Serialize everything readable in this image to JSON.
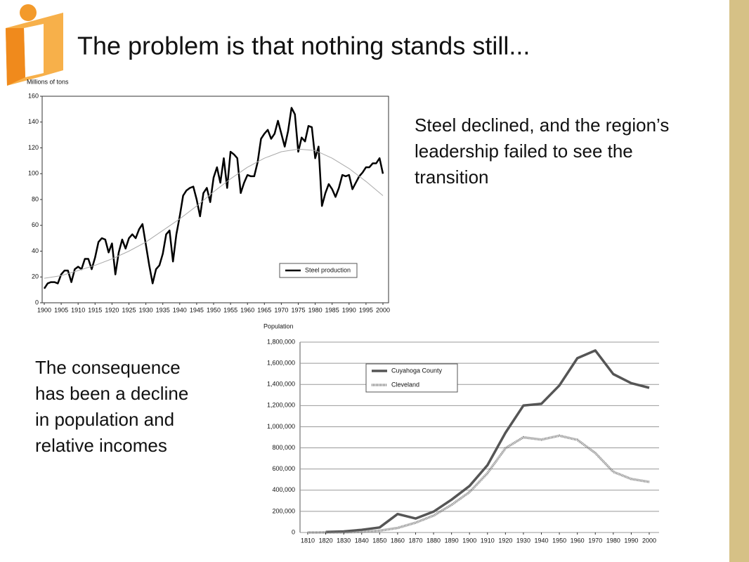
{
  "slide": {
    "title": "The problem is that nothing stands still...",
    "note_right": [
      "Steel declined, and the region’s",
      "leadership failed to see the",
      "transition"
    ],
    "note_left": [
      "The consequence",
      "has been a decline",
      "in population and",
      "relative incomes"
    ]
  },
  "chart_data": [
    {
      "type": "line",
      "y_label": "Millions of tons",
      "x": [
        1900,
        1901,
        1902,
        1903,
        1904,
        1905,
        1906,
        1907,
        1908,
        1909,
        1910,
        1911,
        1912,
        1913,
        1914,
        1915,
        1916,
        1917,
        1918,
        1919,
        1920,
        1921,
        1922,
        1923,
        1924,
        1925,
        1926,
        1927,
        1928,
        1929,
        1930,
        1931,
        1932,
        1933,
        1934,
        1935,
        1936,
        1937,
        1938,
        1939,
        1940,
        1941,
        1942,
        1943,
        1944,
        1945,
        1946,
        1947,
        1948,
        1949,
        1950,
        1951,
        1952,
        1953,
        1954,
        1955,
        1956,
        1957,
        1958,
        1959,
        1960,
        1961,
        1962,
        1963,
        1964,
        1965,
        1966,
        1967,
        1968,
        1969,
        1970,
        1971,
        1972,
        1973,
        1974,
        1975,
        1976,
        1977,
        1978,
        1979,
        1980,
        1981,
        1982,
        1983,
        1984,
        1985,
        1986,
        1987,
        1988,
        1989,
        1990,
        1991,
        1992,
        1993,
        1994,
        1995,
        1996,
        1997,
        1998,
        1999,
        2000
      ],
      "series": [
        {
          "name": "Steel production",
          "color": "#000000",
          "values": [
            11,
            15,
            16,
            16,
            15,
            22,
            25,
            25,
            16,
            26,
            28,
            26,
            34,
            34,
            26,
            35,
            47,
            50,
            49,
            39,
            46,
            22,
            39,
            49,
            42,
            50,
            53,
            50,
            57,
            61,
            45,
            29,
            15,
            26,
            29,
            38,
            53,
            56,
            32,
            53,
            67,
            83,
            87,
            89,
            90,
            80,
            67,
            85,
            89,
            78,
            97,
            105,
            93,
            112,
            89,
            117,
            115,
            112,
            85,
            93,
            99,
            98,
            98,
            109,
            127,
            131,
            134,
            127,
            131,
            141,
            131,
            121,
            133,
            151,
            146,
            117,
            128,
            125,
            137,
            136,
            112,
            121,
            75,
            85,
            92,
            88,
            82,
            89,
            99,
            98,
            99,
            88,
            93,
            98,
            101,
            105,
            105,
            108,
            108,
            112,
            100
          ]
        },
        {
          "color": "#aaaaaa",
          "x": [
            1900,
            1905,
            1910,
            1915,
            1920,
            1925,
            1930,
            1935,
            1940,
            1945,
            1950,
            1955,
            1960,
            1965,
            1970,
            1975,
            1980,
            1985,
            1990,
            1995,
            2000
          ],
          "values": [
            19,
            21,
            25,
            29,
            34,
            40,
            47,
            56,
            65,
            75,
            86,
            96,
            105,
            112,
            117,
            119,
            118,
            112,
            104,
            94,
            83
          ]
        }
      ],
      "xlim": [
        1900,
        2000
      ],
      "xticks": [
        1900,
        1905,
        1910,
        1915,
        1920,
        1925,
        1930,
        1935,
        1940,
        1945,
        1950,
        1955,
        1960,
        1965,
        1970,
        1975,
        1980,
        1985,
        1990,
        1995,
        2000
      ],
      "ylim": [
        0,
        160
      ],
      "yticks": [
        0,
        20,
        40,
        60,
        80,
        100,
        120,
        140,
        160
      ],
      "grid": false,
      "legend": "lower right"
    },
    {
      "type": "line",
      "y_label": "Population",
      "x": [
        1810,
        1820,
        1830,
        1840,
        1850,
        1860,
        1870,
        1880,
        1890,
        1900,
        1910,
        1920,
        1930,
        1940,
        1950,
        1960,
        1970,
        1980,
        1990,
        2000
      ],
      "series": [
        {
          "name": "Cuyahoga County",
          "color": "#555555",
          "style": "solid",
          "values": [
            null,
            5000,
            10000,
            25000,
            48000,
            175000,
            132000,
            197000,
            310000,
            440000,
            637000,
            943000,
            1200000,
            1217000,
            1390000,
            1648000,
            1721000,
            1498000,
            1412000,
            1368000
          ]
        },
        {
          "name": "Cleveland",
          "color": "#777777",
          "style": "dotted",
          "values": [
            0,
            600,
            1000,
            6000,
            17000,
            43000,
            93000,
            160000,
            261000,
            382000,
            561000,
            797000,
            900000,
            878000,
            915000,
            876000,
            751000,
            574000,
            506000,
            478000
          ]
        }
      ],
      "xlim": [
        1810,
        2000
      ],
      "xticks": [
        1810,
        1820,
        1830,
        1840,
        1850,
        1860,
        1870,
        1880,
        1890,
        1900,
        1910,
        1920,
        1930,
        1940,
        1950,
        1960,
        1970,
        1980,
        1990,
        2000
      ],
      "ylim": [
        0,
        1800000
      ],
      "yticks": [
        0,
        {
          "value": 200000,
          "label": "200,000"
        },
        {
          "value": 400000,
          "label": "400,000"
        },
        {
          "value": 600000,
          "label": "600,000"
        },
        {
          "value": 800000,
          "label": "800,000"
        },
        {
          "value": 1000000,
          "label": "1,000,000"
        },
        {
          "value": 1200000,
          "label": "1,200,000"
        },
        {
          "value": 1400000,
          "label": "1,400,000"
        },
        {
          "value": 1600000,
          "label": "1,600,000"
        },
        {
          "value": 1800000,
          "label": "1,800,000"
        }
      ],
      "grid": true,
      "legend": "upper left"
    }
  ]
}
